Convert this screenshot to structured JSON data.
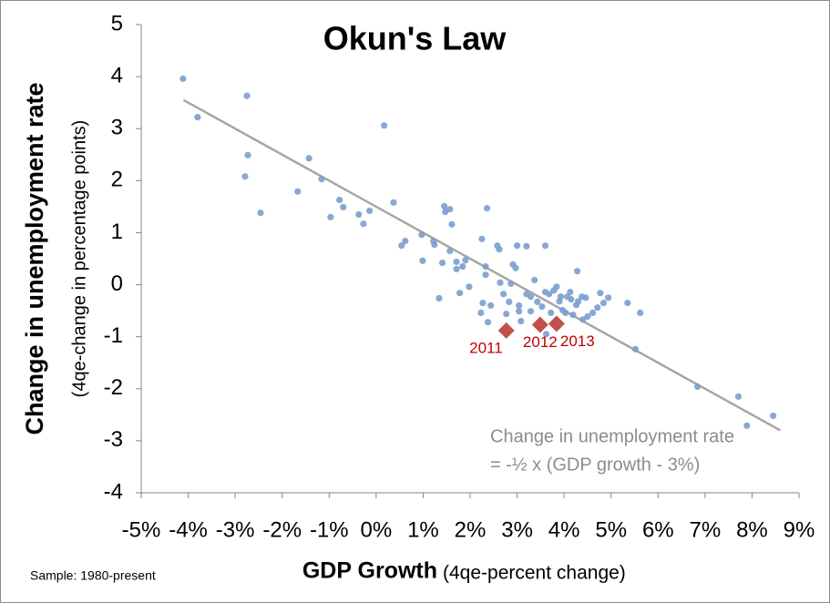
{
  "chart_data": {
    "type": "scatter",
    "title": "Okun's Law",
    "x_label": "GDP Growth",
    "x_label_note": "(4qe-percent change)",
    "y_label": "Change in unemployment rate",
    "y_label_note": "(4qe-change in percentage points)",
    "footnote": "Sample: 1980-present",
    "annotation": [
      "Change in unemployment rate",
      "= -½ x (GDP growth - 3%)"
    ],
    "xlim": [
      -5,
      9
    ],
    "ylim": [
      -4,
      5
    ],
    "xticks": [
      {
        "value": -5,
        "label": "-5%"
      },
      {
        "value": -4,
        "label": "-4%"
      },
      {
        "value": -3,
        "label": "-3%"
      },
      {
        "value": -2,
        "label": "-2%"
      },
      {
        "value": -1,
        "label": "-1%"
      },
      {
        "value": 0,
        "label": "0%"
      },
      {
        "value": 1,
        "label": "1%"
      },
      {
        "value": 2,
        "label": "2%"
      },
      {
        "value": 3,
        "label": "3%"
      },
      {
        "value": 4,
        "label": "4%"
      },
      {
        "value": 5,
        "label": "5%"
      },
      {
        "value": 6,
        "label": "6%"
      },
      {
        "value": 7,
        "label": "7%"
      },
      {
        "value": 8,
        "label": "8%"
      },
      {
        "value": 9,
        "label": "9%"
      }
    ],
    "yticks": [
      -4,
      -3,
      -2,
      -1,
      0,
      1,
      2,
      3,
      4,
      5
    ],
    "trendline": {
      "x": [
        -4.1,
        8.6
      ],
      "y": [
        3.55,
        -2.8
      ],
      "color": "#a6a6a6"
    },
    "series": [
      {
        "color": "#7a9fd0",
        "marker": "circle",
        "x": [
          -4.11,
          -3.8,
          -2.75,
          -2.73,
          -2.79,
          -2.46,
          -1.43,
          -1.67,
          -1.16,
          -0.78,
          -0.7,
          -0.97,
          -0.37,
          -0.27,
          -0.14,
          0.17,
          0.37,
          0.62,
          0.54,
          0.97,
          0.99,
          1.22,
          1.24,
          1.34,
          1.41,
          1.45,
          1.47,
          1.57,
          1.61,
          1.71,
          1.71,
          1.84,
          1.9,
          1.98,
          1.78,
          1.57,
          2.25,
          2.33,
          2.36,
          2.33,
          2.27,
          2.23,
          2.44,
          2.38,
          2.58,
          2.62,
          2.64,
          2.71,
          2.77,
          2.83,
          2.87,
          2.91,
          2.97,
          3.0,
          3.04,
          3.04,
          3.08,
          3.2,
          3.2,
          3.29,
          3.29,
          3.37,
          3.43,
          3.53,
          3.6,
          3.6,
          3.68,
          3.72,
          3.78,
          3.84,
          3.9,
          3.93,
          3.97,
          4.03,
          4.07,
          4.13,
          4.15,
          4.19,
          4.26,
          4.28,
          4.3,
          4.38,
          4.4,
          4.46,
          4.5,
          4.61,
          4.71,
          4.77,
          4.84,
          4.94,
          5.35,
          5.62,
          5.52,
          6.84,
          7.71,
          7.89,
          8.45,
          3.62
        ],
        "values": [
          3.96,
          3.22,
          3.63,
          2.49,
          2.08,
          1.38,
          2.43,
          1.79,
          2.03,
          1.63,
          1.49,
          1.3,
          1.35,
          1.17,
          1.42,
          3.06,
          1.58,
          0.84,
          0.75,
          0.96,
          0.46,
          0.84,
          0.77,
          -0.26,
          0.42,
          1.51,
          1.4,
          1.45,
          1.16,
          0.44,
          0.3,
          0.35,
          0.47,
          -0.04,
          -0.16,
          0.65,
          0.88,
          0.35,
          1.47,
          0.19,
          -0.35,
          -0.54,
          -0.4,
          -0.72,
          0.75,
          0.68,
          0.04,
          -0.18,
          -0.56,
          -0.33,
          0.02,
          0.39,
          0.32,
          0.75,
          -0.4,
          -0.51,
          -0.7,
          0.74,
          -0.18,
          -0.23,
          -0.51,
          0.09,
          -0.33,
          -0.42,
          0.75,
          -0.14,
          -0.18,
          -0.54,
          -0.11,
          -0.04,
          -0.32,
          -0.23,
          -0.49,
          -0.54,
          -0.23,
          -0.14,
          -0.28,
          -0.58,
          -0.39,
          0.26,
          -0.32,
          -0.23,
          -0.67,
          -0.25,
          -0.61,
          -0.54,
          -0.44,
          -0.16,
          -0.35,
          -0.25,
          -0.35,
          -0.54,
          -1.24,
          -1.96,
          -2.15,
          -2.71,
          -2.52,
          -0.95
        ]
      },
      {
        "color": "#c0504d",
        "marker": "diamond",
        "x": [
          2.77,
          3.49,
          3.84
        ],
        "values": [
          -0.88,
          -0.77,
          -0.75
        ],
        "point_labels": [
          "2011",
          "2012",
          "2013"
        ],
        "label_color": "#c00000"
      }
    ]
  }
}
